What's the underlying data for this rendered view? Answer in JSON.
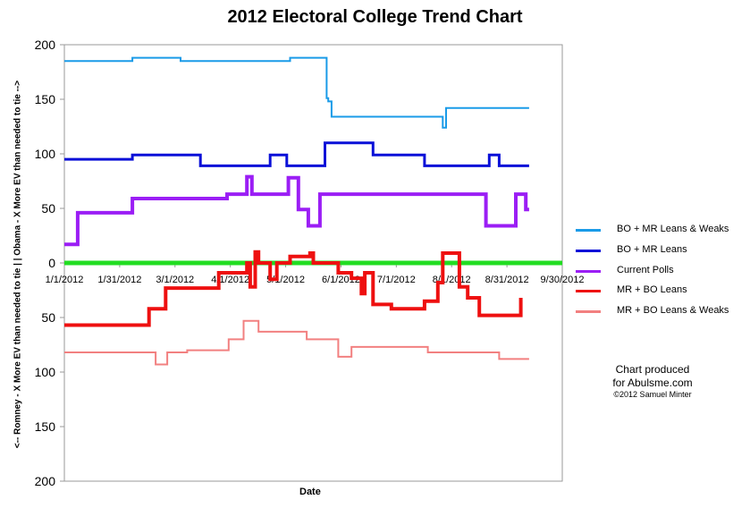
{
  "chart_data": {
    "type": "line",
    "title": "2012 Electoral College Trend Chart",
    "xlabel": "Date",
    "ylabel": "<-- Romney - X More EV than needed to tie | | Obama - X More EV than needed to tie -->",
    "x_tick_labels": [
      "1/1/2012",
      "1/31/2012",
      "3/1/2012",
      "4/1/2012",
      "5/1/2012",
      "6/1/2012",
      "7/1/2012",
      "8/1/2012",
      "8/31/2012",
      "9/30/2012"
    ],
    "y_tick_labels": [
      "200",
      "150",
      "100",
      "50",
      "0",
      "50",
      "100",
      "150",
      "200"
    ],
    "ylim": [
      -200,
      200
    ],
    "x_range_days": [
      0,
      300
    ],
    "grid": false,
    "legend_position": "right",
    "series": [
      {
        "name": "BO + MR Leans & Weaks",
        "color": "#1a9be8",
        "points": [
          [
            0,
            185
          ],
          [
            41,
            185
          ],
          [
            41,
            188
          ],
          [
            70,
            188
          ],
          [
            70,
            185
          ],
          [
            136,
            185
          ],
          [
            136,
            188
          ],
          [
            158,
            188
          ],
          [
            158,
            151
          ],
          [
            159,
            151
          ],
          [
            159,
            148
          ],
          [
            161,
            148
          ],
          [
            161,
            134
          ],
          [
            228,
            134
          ],
          [
            228,
            124
          ],
          [
            230,
            124
          ],
          [
            230,
            142
          ],
          [
            280,
            142
          ]
        ]
      },
      {
        "name": "BO + MR Leans",
        "color": "#0a10d8",
        "points": [
          [
            0,
            95
          ],
          [
            41,
            95
          ],
          [
            41,
            99
          ],
          [
            82,
            99
          ],
          [
            82,
            89
          ],
          [
            124,
            89
          ],
          [
            124,
            99
          ],
          [
            134,
            99
          ],
          [
            134,
            89
          ],
          [
            157,
            89
          ],
          [
            157,
            110
          ],
          [
            186,
            110
          ],
          [
            186,
            99
          ],
          [
            217,
            99
          ],
          [
            217,
            89
          ],
          [
            256,
            89
          ],
          [
            256,
            99
          ],
          [
            262,
            99
          ],
          [
            262,
            89
          ],
          [
            280,
            89
          ]
        ]
      },
      {
        "name": "Current Polls",
        "color": "#9b1ef5",
        "points": [
          [
            0,
            17
          ],
          [
            8,
            17
          ],
          [
            8,
            46
          ],
          [
            41,
            46
          ],
          [
            41,
            59
          ],
          [
            98,
            59
          ],
          [
            98,
            63
          ],
          [
            110,
            63
          ],
          [
            110,
            79
          ],
          [
            113,
            79
          ],
          [
            113,
            63
          ],
          [
            135,
            63
          ],
          [
            135,
            78
          ],
          [
            141,
            78
          ],
          [
            141,
            49
          ],
          [
            147,
            49
          ],
          [
            147,
            34
          ],
          [
            154,
            34
          ],
          [
            154,
            63
          ],
          [
            254,
            63
          ],
          [
            254,
            34
          ],
          [
            272,
            34
          ],
          [
            272,
            63
          ],
          [
            278,
            63
          ],
          [
            278,
            49
          ],
          [
            280,
            49
          ]
        ]
      },
      {
        "name": "MR + BO Leans",
        "color": "#ee1010",
        "points": [
          [
            0,
            -57
          ],
          [
            51,
            -57
          ],
          [
            51,
            -42
          ],
          [
            61,
            -42
          ],
          [
            61,
            -23
          ],
          [
            93,
            -23
          ],
          [
            93,
            -9
          ],
          [
            110,
            -9
          ],
          [
            110,
            0
          ],
          [
            112,
            0
          ],
          [
            112,
            -22
          ],
          [
            115,
            -22
          ],
          [
            115,
            10
          ],
          [
            117,
            10
          ],
          [
            117,
            0
          ],
          [
            124,
            0
          ],
          [
            124,
            -15
          ],
          [
            128,
            -15
          ],
          [
            128,
            0
          ],
          [
            136,
            0
          ],
          [
            136,
            6
          ],
          [
            148,
            6
          ],
          [
            148,
            9
          ],
          [
            150,
            9
          ],
          [
            150,
            0
          ],
          [
            165,
            0
          ],
          [
            165,
            -9
          ],
          [
            173,
            -9
          ],
          [
            173,
            -14
          ],
          [
            179,
            -14
          ],
          [
            179,
            -28
          ],
          [
            181,
            -28
          ],
          [
            181,
            -9
          ],
          [
            186,
            -9
          ],
          [
            186,
            -38
          ],
          [
            197,
            -38
          ],
          [
            197,
            -42
          ],
          [
            217,
            -42
          ],
          [
            217,
            -35
          ],
          [
            225,
            -35
          ],
          [
            225,
            -18
          ],
          [
            228,
            -18
          ],
          [
            228,
            9
          ],
          [
            238,
            9
          ],
          [
            238,
            -22
          ],
          [
            243,
            -22
          ],
          [
            243,
            -32
          ],
          [
            250,
            -32
          ],
          [
            250,
            -48
          ],
          [
            275,
            -48
          ],
          [
            275,
            -32
          ]
        ]
      },
      {
        "name": "MR + BO Leans & Weaks",
        "color": "#f28080",
        "points": [
          [
            0,
            -82
          ],
          [
            55,
            -82
          ],
          [
            55,
            -93
          ],
          [
            62,
            -93
          ],
          [
            62,
            -82
          ],
          [
            74,
            -82
          ],
          [
            74,
            -80
          ],
          [
            99,
            -80
          ],
          [
            99,
            -70
          ],
          [
            108,
            -70
          ],
          [
            108,
            -53
          ],
          [
            117,
            -53
          ],
          [
            117,
            -63
          ],
          [
            146,
            -63
          ],
          [
            146,
            -70
          ],
          [
            165,
            -70
          ],
          [
            165,
            -86
          ],
          [
            173,
            -86
          ],
          [
            173,
            -77
          ],
          [
            219,
            -77
          ],
          [
            219,
            -82
          ],
          [
            262,
            -82
          ],
          [
            262,
            -88
          ],
          [
            280,
            -88
          ]
        ]
      },
      {
        "name": "",
        "color": "#22dd22",
        "points": [
          [
            0,
            0
          ],
          [
            300,
            0
          ]
        ]
      }
    ]
  },
  "credit": {
    "line1": "Chart produced",
    "line2": "for Abulsme.com",
    "line3": "©2012 Samuel Minter"
  }
}
